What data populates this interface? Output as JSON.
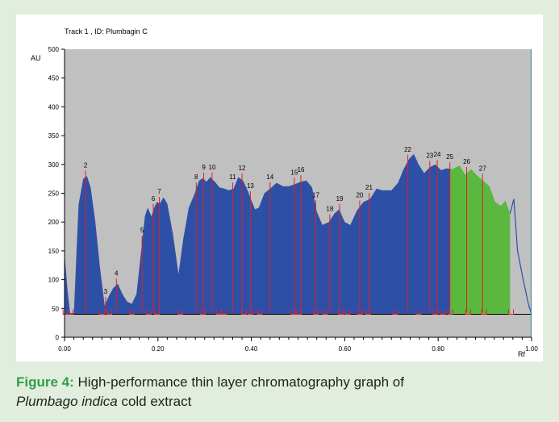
{
  "caption": {
    "label": "Figure 4:",
    "text_line1": "High-performance thin layer chromatography graph of",
    "species": "Plumbago indica",
    "text_rest": "cold extract"
  },
  "chart_data": {
    "type": "area",
    "title": "Track  1 , ID: Plumbagin C",
    "ylabel": "AU",
    "xlabel": "Rf",
    "xlim": [
      0.0,
      1.0
    ],
    "ylim": [
      0,
      500
    ],
    "y_ticks": [
      0,
      50,
      100,
      150,
      200,
      250,
      300,
      350,
      400,
      450,
      500
    ],
    "y_tick_labels": [
      "0",
      "50",
      "100",
      "150",
      "200",
      "250",
      "300",
      "350",
      "400",
      "450",
      "500"
    ],
    "x_ticks": [
      0.0,
      0.2,
      0.4,
      0.6,
      0.8,
      1.0
    ],
    "x_tick_labels": [
      "0.00",
      "0.20",
      "0.40",
      "0.60",
      "0.80",
      "1.00"
    ],
    "baseline": 40,
    "colors": {
      "plot_bg": "#c0c0c0",
      "peak_fill": "#2e4fa6",
      "highlight_fill": "#5bb83e",
      "marker": "#e02020",
      "end_line": "#3a8a8a"
    },
    "highlight_range": [
      0.826,
      0.954
    ],
    "end_marker": 0.999,
    "profile": [
      [
        0.0,
        145
      ],
      [
        0.006,
        85
      ],
      [
        0.012,
        42
      ],
      [
        0.02,
        42
      ],
      [
        0.03,
        230
      ],
      [
        0.04,
        275
      ],
      [
        0.048,
        280
      ],
      [
        0.056,
        260
      ],
      [
        0.066,
        200
      ],
      [
        0.076,
        120
      ],
      [
        0.086,
        55
      ],
      [
        0.094,
        70
      ],
      [
        0.104,
        85
      ],
      [
        0.114,
        93
      ],
      [
        0.124,
        75
      ],
      [
        0.134,
        62
      ],
      [
        0.144,
        58
      ],
      [
        0.154,
        75
      ],
      [
        0.164,
        150
      ],
      [
        0.172,
        210
      ],
      [
        0.178,
        225
      ],
      [
        0.186,
        210
      ],
      [
        0.192,
        225
      ],
      [
        0.198,
        235
      ],
      [
        0.204,
        232
      ],
      [
        0.212,
        243
      ],
      [
        0.22,
        232
      ],
      [
        0.232,
        180
      ],
      [
        0.244,
        110
      ],
      [
        0.254,
        170
      ],
      [
        0.266,
        225
      ],
      [
        0.278,
        248
      ],
      [
        0.288,
        272
      ],
      [
        0.296,
        276
      ],
      [
        0.304,
        270
      ],
      [
        0.312,
        278
      ],
      [
        0.322,
        270
      ],
      [
        0.332,
        260
      ],
      [
        0.342,
        258
      ],
      [
        0.352,
        255
      ],
      [
        0.362,
        258
      ],
      [
        0.372,
        278
      ],
      [
        0.382,
        272
      ],
      [
        0.392,
        255
      ],
      [
        0.4,
        238
      ],
      [
        0.408,
        222
      ],
      [
        0.416,
        225
      ],
      [
        0.428,
        250
      ],
      [
        0.44,
        258
      ],
      [
        0.454,
        268
      ],
      [
        0.468,
        262
      ],
      [
        0.48,
        262
      ],
      [
        0.494,
        266
      ],
      [
        0.506,
        270
      ],
      [
        0.518,
        272
      ],
      [
        0.53,
        260
      ],
      [
        0.54,
        218
      ],
      [
        0.552,
        195
      ],
      [
        0.566,
        200
      ],
      [
        0.578,
        215
      ],
      [
        0.588,
        222
      ],
      [
        0.6,
        200
      ],
      [
        0.612,
        195
      ],
      [
        0.626,
        220
      ],
      [
        0.64,
        235
      ],
      [
        0.654,
        240
      ],
      [
        0.668,
        258
      ],
      [
        0.68,
        255
      ],
      [
        0.7,
        255
      ],
      [
        0.714,
        268
      ],
      [
        0.726,
        292
      ],
      [
        0.738,
        310
      ],
      [
        0.748,
        318
      ],
      [
        0.758,
        300
      ],
      [
        0.77,
        285
      ],
      [
        0.782,
        295
      ],
      [
        0.794,
        300
      ],
      [
        0.806,
        290
      ],
      [
        0.818,
        293
      ],
      [
        0.83,
        292
      ],
      [
        0.846,
        298
      ],
      [
        0.858,
        282
      ],
      [
        0.87,
        292
      ],
      [
        0.882,
        282
      ],
      [
        0.896,
        272
      ],
      [
        0.91,
        262
      ],
      [
        0.922,
        235
      ],
      [
        0.934,
        228
      ],
      [
        0.944,
        237
      ],
      [
        0.954,
        215
      ],
      [
        0.962,
        240
      ],
      [
        0.97,
        150
      ],
      [
        0.982,
        100
      ],
      [
        0.994,
        55
      ],
      [
        1.0,
        40
      ]
    ],
    "peaks": [
      {
        "label": "2",
        "x": 0.045
      },
      {
        "label": "3",
        "x": 0.088
      },
      {
        "label": "4",
        "x": 0.111
      },
      {
        "label": "5",
        "x": 0.166
      },
      {
        "label": "6",
        "x": 0.19
      },
      {
        "label": "7",
        "x": 0.203
      },
      {
        "label": "8",
        "x": 0.282
      },
      {
        "label": "9",
        "x": 0.298
      },
      {
        "label": "10",
        "x": 0.316
      },
      {
        "label": "11",
        "x": 0.36
      },
      {
        "label": "12",
        "x": 0.38
      },
      {
        "label": "13",
        "x": 0.398
      },
      {
        "label": "14",
        "x": 0.44
      },
      {
        "label": "15",
        "x": 0.492
      },
      {
        "label": "16",
        "x": 0.506
      },
      {
        "label": "17",
        "x": 0.538
      },
      {
        "label": "18",
        "x": 0.568
      },
      {
        "label": "19",
        "x": 0.589
      },
      {
        "label": "20",
        "x": 0.632
      },
      {
        "label": "21",
        "x": 0.652
      },
      {
        "label": "22",
        "x": 0.735
      },
      {
        "label": "23",
        "x": 0.782
      },
      {
        "label": "24",
        "x": 0.798
      },
      {
        "label": "25",
        "x": 0.825
      },
      {
        "label": "26",
        "x": 0.861
      },
      {
        "label": "27",
        "x": 0.895
      }
    ],
    "boundaries": [
      0.002,
      0.013,
      0.08,
      0.096,
      0.144,
      0.18,
      0.198,
      0.248,
      0.296,
      0.33,
      0.342,
      0.384,
      0.398,
      0.418,
      0.49,
      0.502,
      0.538,
      0.558,
      0.592,
      0.606,
      0.632,
      0.65,
      0.708,
      0.758,
      0.794,
      0.81,
      0.826,
      0.864,
      0.898,
      0.956
    ]
  }
}
